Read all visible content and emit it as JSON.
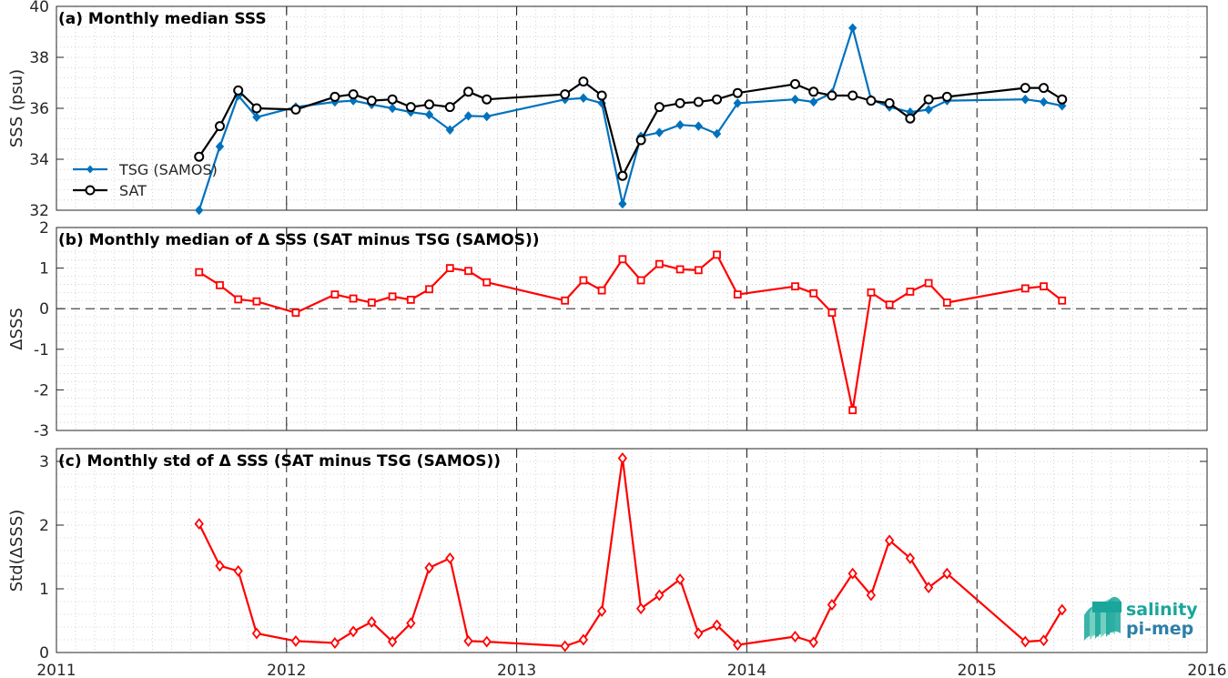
{
  "chart_data": [
    {
      "type": "line",
      "title": "(a) Monthly median SSS",
      "xlabel": "",
      "ylabel": "SSS (psu)",
      "xlim": [
        2011,
        2016
      ],
      "ylim": [
        32,
        40
      ],
      "yticks": [
        32,
        34,
        36,
        38,
        40
      ],
      "grid": "dotted minor grid, dashed vertical lines at year boundaries",
      "legend": "left",
      "series": [
        {
          "name": "TSG (SAMOS)",
          "color": "#0072BD",
          "marker": "filled-diamond",
          "x": [
            2011.62,
            2011.71,
            2011.79,
            2011.87,
            2012.04,
            2012.21,
            2012.29,
            2012.37,
            2012.46,
            2012.54,
            2012.62,
            2012.71,
            2012.79,
            2012.87,
            2013.21,
            2013.29,
            2013.37,
            2013.46,
            2013.54,
            2013.62,
            2013.71,
            2013.79,
            2013.87,
            2013.96,
            2014.21,
            2014.29,
            2014.37,
            2014.46,
            2014.54,
            2014.62,
            2014.71,
            2014.79,
            2014.87,
            2015.21,
            2015.29,
            2015.37
          ],
          "y": [
            32.0,
            34.5,
            36.5,
            35.65,
            36.05,
            36.25,
            36.3,
            36.15,
            36.0,
            35.85,
            35.75,
            35.15,
            35.7,
            35.68,
            36.35,
            36.4,
            36.2,
            32.25,
            34.9,
            35.05,
            35.35,
            35.3,
            35.0,
            36.2,
            36.35,
            36.25,
            36.6,
            39.15,
            36.35,
            36.05,
            35.85,
            35.95,
            36.3,
            36.35,
            36.25,
            36.1
          ]
        },
        {
          "name": "SAT",
          "color": "#000000",
          "marker": "open-circle",
          "x": [
            2011.62,
            2011.71,
            2011.79,
            2011.87,
            2012.04,
            2012.21,
            2012.29,
            2012.37,
            2012.46,
            2012.54,
            2012.62,
            2012.71,
            2012.79,
            2012.87,
            2013.21,
            2013.29,
            2013.37,
            2013.46,
            2013.54,
            2013.62,
            2013.71,
            2013.79,
            2013.87,
            2013.96,
            2014.21,
            2014.29,
            2014.37,
            2014.46,
            2014.54,
            2014.62,
            2014.71,
            2014.79,
            2014.87,
            2015.21,
            2015.29,
            2015.37
          ],
          "y": [
            34.1,
            35.3,
            36.7,
            36.0,
            35.95,
            36.45,
            36.55,
            36.3,
            36.35,
            36.05,
            36.15,
            36.05,
            36.65,
            36.35,
            36.55,
            37.05,
            36.5,
            33.35,
            34.75,
            36.05,
            36.2,
            36.25,
            36.35,
            36.6,
            36.95,
            36.65,
            36.5,
            36.5,
            36.3,
            36.2,
            35.6,
            36.35,
            36.45,
            36.8,
            36.8,
            36.35
          ]
        }
      ]
    },
    {
      "type": "line",
      "title": "(b) Monthly median of Δ SSS (SAT minus TSG (SAMOS))",
      "xlabel": "",
      "ylabel": "ΔSSS",
      "xlim": [
        2011,
        2016
      ],
      "ylim": [
        -3,
        2
      ],
      "yticks": [
        -3,
        -2,
        -1,
        0,
        1,
        2
      ],
      "reference_line_y": 0,
      "series": [
        {
          "color": "#FF0000",
          "marker": "open-square",
          "x": [
            2011.62,
            2011.71,
            2011.79,
            2011.87,
            2012.04,
            2012.21,
            2012.29,
            2012.37,
            2012.46,
            2012.54,
            2012.62,
            2012.71,
            2012.79,
            2012.87,
            2013.21,
            2013.29,
            2013.37,
            2013.46,
            2013.54,
            2013.62,
            2013.71,
            2013.79,
            2013.87,
            2013.96,
            2014.21,
            2014.29,
            2014.37,
            2014.46,
            2014.54,
            2014.62,
            2014.71,
            2014.79,
            2014.87,
            2015.21,
            2015.29,
            2015.37
          ],
          "y": [
            0.9,
            0.58,
            0.23,
            0.18,
            -0.1,
            0.35,
            0.25,
            0.15,
            0.3,
            0.22,
            0.48,
            1.0,
            0.93,
            0.65,
            0.2,
            0.7,
            0.45,
            1.22,
            0.7,
            1.1,
            0.97,
            0.95,
            1.33,
            0.35,
            0.55,
            0.38,
            -0.1,
            -2.5,
            0.4,
            0.1,
            0.42,
            0.63,
            0.15,
            0.5,
            0.55,
            0.2
          ]
        }
      ]
    },
    {
      "type": "line",
      "title": "(c) Monthly std of Δ SSS (SAT minus TSG (SAMOS))",
      "xlabel": "",
      "ylabel": "Std(ΔSSS)",
      "xlim": [
        2011,
        2016
      ],
      "ylim": [
        0,
        3.2
      ],
      "yticks": [
        0,
        1,
        2,
        3
      ],
      "xticks": [
        2011,
        2012,
        2013,
        2014,
        2015,
        2016
      ],
      "series": [
        {
          "color": "#FF0000",
          "marker": "open-diamond",
          "x": [
            2011.62,
            2011.71,
            2011.79,
            2011.87,
            2012.04,
            2012.21,
            2012.29,
            2012.37,
            2012.46,
            2012.54,
            2012.62,
            2012.71,
            2012.79,
            2012.87,
            2013.21,
            2013.29,
            2013.37,
            2013.46,
            2013.54,
            2013.62,
            2013.71,
            2013.79,
            2013.87,
            2013.96,
            2014.21,
            2014.29,
            2014.37,
            2014.46,
            2014.54,
            2014.62,
            2014.71,
            2014.79,
            2014.87,
            2015.21,
            2015.29,
            2015.37
          ],
          "y": [
            2.02,
            1.36,
            1.28,
            0.3,
            0.18,
            0.15,
            0.33,
            0.48,
            0.17,
            0.46,
            1.33,
            1.48,
            0.18,
            0.17,
            0.1,
            0.2,
            0.65,
            3.05,
            0.69,
            0.9,
            1.15,
            0.3,
            0.43,
            0.12,
            0.25,
            0.16,
            0.75,
            1.24,
            0.9,
            1.76,
            1.48,
            1.02,
            1.24,
            0.17,
            0.19,
            0.67
          ]
        }
      ]
    }
  ],
  "logo": {
    "line1": "salinity",
    "line2": "pi-mep",
    "colors": [
      "#1aa69a",
      "#2e7fa8"
    ]
  }
}
